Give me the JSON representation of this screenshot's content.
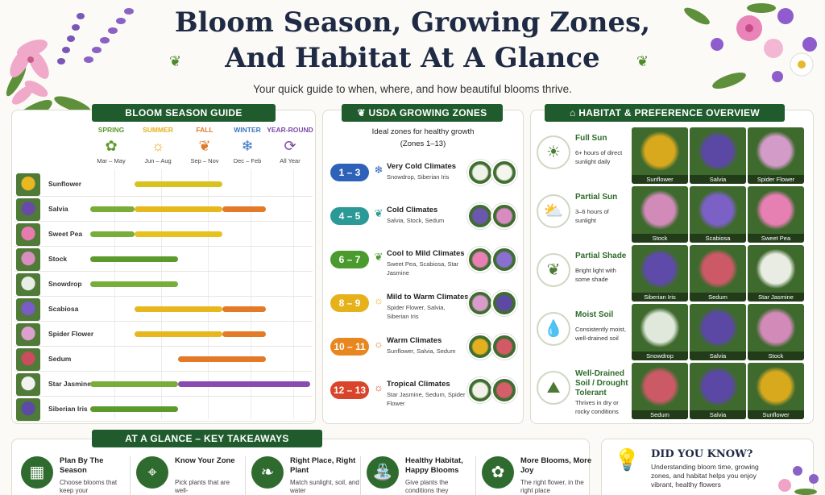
{
  "header": {
    "title_line1": "Bloom Season, Growing Zones,",
    "title_line2": "And Habitat At A Glance",
    "subtitle": "Your quick guide to when, where, and how beautiful blooms thrive."
  },
  "bloom_guide": {
    "heading": "BLOOM SEASON GUIDE",
    "seasons": [
      {
        "name": "SPRING",
        "range": "Mar – May",
        "color": "#5c9a2d",
        "icon": "flower-icon"
      },
      {
        "name": "SUMMER",
        "range": "Jun – Aug",
        "color": "#e2b21b",
        "icon": "sun-icon"
      },
      {
        "name": "FALL",
        "range": "Sep – Nov",
        "color": "#e07a2a",
        "icon": "leaf-icon"
      },
      {
        "name": "WINTER",
        "range": "Dec – Feb",
        "color": "#3a74c4",
        "icon": "snowflake-icon"
      },
      {
        "name": "YEAR-ROUND",
        "range": "All Year",
        "color": "#7b4aa8",
        "icon": "cycle-icon"
      }
    ],
    "flowers": [
      {
        "name": "Sunflower",
        "thumb": "#e9b71f",
        "bars": [
          {
            "from": 1,
            "to": 3,
            "color": "#d8c21e"
          }
        ]
      },
      {
        "name": "Salvia",
        "thumb": "#6a4aa8",
        "bars": [
          {
            "from": 0,
            "to": 1,
            "color": "#79ad3a"
          },
          {
            "from": 1,
            "to": 3,
            "color": "#e7b81e"
          },
          {
            "from": 3,
            "to": 4,
            "color": "#e47a28"
          }
        ]
      },
      {
        "name": "Sweet Pea",
        "thumb": "#e67bb0",
        "bars": [
          {
            "from": 0,
            "to": 1,
            "color": "#79ad3a"
          },
          {
            "from": 1,
            "to": 3,
            "color": "#e7c11e"
          }
        ]
      },
      {
        "name": "Stock",
        "thumb": "#d98ec0",
        "bars": [
          {
            "from": 0,
            "to": 2,
            "color": "#5c9a2d"
          }
        ]
      },
      {
        "name": "Snowdrop",
        "thumb": "#e8eee4",
        "bars": [
          {
            "from": 0,
            "to": 2,
            "color": "#79ad3a"
          }
        ]
      },
      {
        "name": "Scabiosa",
        "thumb": "#7a5bc7",
        "bars": [
          {
            "from": 1,
            "to": 3,
            "color": "#e7b81e"
          },
          {
            "from": 3,
            "to": 4,
            "color": "#e47a28"
          }
        ]
      },
      {
        "name": "Spider Flower",
        "thumb": "#dca0cf",
        "bars": [
          {
            "from": 1,
            "to": 3,
            "color": "#e7b81e"
          },
          {
            "from": 3,
            "to": 4,
            "color": "#e47a28"
          }
        ]
      },
      {
        "name": "Sedum",
        "thumb": "#c94d5c",
        "bars": [
          {
            "from": 2,
            "to": 4,
            "color": "#e47a28"
          }
        ]
      },
      {
        "name": "Star Jasmine",
        "thumb": "#f2f2ee",
        "bars": [
          {
            "from": 0,
            "to": 2,
            "color": "#79ad3a"
          },
          {
            "from": 2,
            "to": 5,
            "color": "#8a4ab0"
          }
        ]
      },
      {
        "name": "Siberian Iris",
        "thumb": "#5b4aa6",
        "bars": [
          {
            "from": 0,
            "to": 2,
            "color": "#5c9a2d"
          }
        ]
      }
    ]
  },
  "zones": {
    "heading": "USDA GROWING ZONES",
    "intro_line1": "Ideal zones for healthy growth",
    "intro_line2": "(Zones 1–13)",
    "rows": [
      {
        "range": "1 – 3",
        "color": "#2d62b8",
        "icon": "❄",
        "title": "Very Cold Climates",
        "desc": "Snowdrop, Siberian Iris",
        "pics": [
          "#eef2e8",
          "#f4f6ee"
        ]
      },
      {
        "range": "4 – 5",
        "color": "#2b9a96",
        "icon": "❦",
        "title": "Cold Climates",
        "desc": "Salvia, Stock, Sedum",
        "pics": [
          "#6c57ae",
          "#d78bc0"
        ]
      },
      {
        "range": "6 – 7",
        "color": "#4a9a2d",
        "icon": "❦",
        "title": "Cool to Mild Climates",
        "desc": "Sweet Pea, Scabiosa, Star Jasmine",
        "pics": [
          "#e97fb4",
          "#8a6fd0"
        ]
      },
      {
        "range": "8 – 9",
        "color": "#e6b21c",
        "icon": "☼",
        "title": "Mild to Warm Climates",
        "desc": "Spider Flower, Salvia, Siberian Iris",
        "pics": [
          "#d99bcb",
          "#5d48a3"
        ]
      },
      {
        "range": "10 – 11",
        "color": "#e8861f",
        "icon": "☼",
        "title": "Warm Climates",
        "desc": "Sunflower, Salvia, Sedum",
        "pics": [
          "#e4b020",
          "#d15a66"
        ]
      },
      {
        "range": "12 – 13",
        "color": "#d9452b",
        "icon": "☼",
        "title": "Tropical Climates",
        "desc": "Star Jasmine, Sedum, Spider Flower",
        "pics": [
          "#f2f2ea",
          "#d45f6b"
        ]
      }
    ]
  },
  "habitat": {
    "heading": "HABITAT & PREFERENCE OVERVIEW",
    "rows": [
      {
        "icon": "☀",
        "icon_name": "full-sun-icon",
        "title": "Full Sun",
        "desc": "6+ hours of direct sunlight daily",
        "pics": [
          {
            "label": "Sunflower",
            "color": "#d9a91d"
          },
          {
            "label": "Salvia",
            "color": "#5a48a4"
          },
          {
            "label": "Spider Flower",
            "color": "#d39bc8"
          }
        ]
      },
      {
        "icon": "⛅",
        "icon_name": "partial-sun-icon",
        "title": "Partial Sun",
        "desc": "3–6 hours of sunlight",
        "pics": [
          {
            "label": "Stock",
            "color": "#d28ab9"
          },
          {
            "label": "Scabiosa",
            "color": "#7b60c6"
          },
          {
            "label": "Sweet Pea",
            "color": "#e67fb2"
          }
        ]
      },
      {
        "icon": "❦",
        "icon_name": "partial-shade-icon",
        "title": "Partial Shade",
        "desc": "Bright light with some shade",
        "pics": [
          {
            "label": "Siberian Iris",
            "color": "#5e4aa8"
          },
          {
            "label": "Sedum",
            "color": "#cb5a66"
          },
          {
            "label": "Star Jasmine",
            "color": "#e9ece2"
          }
        ]
      },
      {
        "icon": "💧",
        "icon_name": "moist-soil-icon",
        "title": "Moist Soil",
        "desc": "Consistently moist, well-drained soil",
        "pics": [
          {
            "label": "Snowdrop",
            "color": "#dfe8da"
          },
          {
            "label": "Salvia",
            "color": "#5a48a4"
          },
          {
            "label": "Stock",
            "color": "#d28ab9"
          }
        ]
      },
      {
        "icon": "⛰",
        "icon_name": "drought-soil-icon",
        "title": "Well-Drained Soil / Drought Tolerant",
        "desc": "Thrives in dry or rocky conditions",
        "pics": [
          {
            "label": "Sedum",
            "color": "#cb5a66"
          },
          {
            "label": "Salvia",
            "color": "#5a48a4"
          },
          {
            "label": "Sunflower",
            "color": "#d9a91d"
          }
        ]
      }
    ]
  },
  "takeaways": {
    "heading": "AT A GLANCE – KEY TAKEAWAYS",
    "items": [
      {
        "icon": "▦",
        "icon_name": "calendar-icon",
        "title": "Plan By The Season",
        "desc": "Choose blooms that keep your"
      },
      {
        "icon": "⌖",
        "icon_name": "location-pin-icon",
        "title": "Know Your Zone",
        "desc": "Pick plants that are well-"
      },
      {
        "icon": "❧",
        "icon_name": "seedling-icon",
        "title": "Right Place, Right Plant",
        "desc": "Match sunlight, soil, and water"
      },
      {
        "icon": "⛲",
        "icon_name": "watering-can-icon",
        "title": "Healthy Habitat, Happy Blooms",
        "desc": "Give plants the conditions they"
      },
      {
        "icon": "✿",
        "icon_name": "blossom-icon",
        "title": "More Blooms, More Joy",
        "desc": "The right flower, in the right place"
      }
    ]
  },
  "did_you_know": {
    "heading": "DID YOU KNOW?",
    "text": "Understanding bloom time, growing zones, and habitat helps you enjoy vibrant, healthy flowers"
  }
}
